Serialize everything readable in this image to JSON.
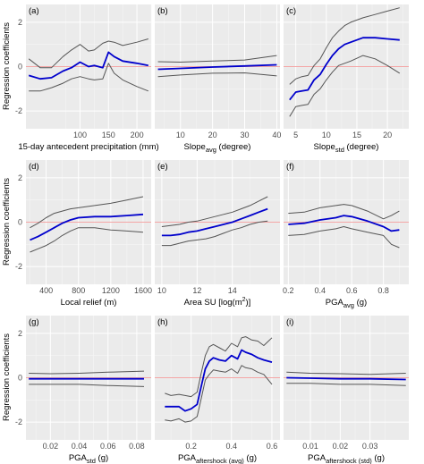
{
  "figure": {
    "ylabel": "Regression coefficients"
  },
  "chart_data": [
    {
      "type": "line",
      "panel_label": "(a)",
      "xlabel_parts": [
        {
          "t": "15-day antecedent precipitation (mm)"
        }
      ],
      "xlim": [
        5,
        225
      ],
      "ylim": [
        -2.8,
        2.8
      ],
      "xticks": [
        "100",
        "150",
        "200"
      ],
      "yticks": [
        "-2",
        "0",
        "2"
      ],
      "x": [
        10,
        30,
        50,
        70,
        85,
        100,
        115,
        125,
        140,
        150,
        160,
        175,
        200,
        220
      ],
      "series": [
        {
          "values": [
            0.35,
            -0.05,
            -0.05,
            0.45,
            0.75,
            1.0,
            0.7,
            0.75,
            1.05,
            1.15,
            1.1,
            0.95,
            1.1,
            1.25
          ]
        },
        {
          "values": [
            -0.4,
            -0.55,
            -0.5,
            -0.2,
            -0.05,
            0.2,
            0.0,
            0.05,
            -0.05,
            0.65,
            0.45,
            0.25,
            0.15,
            0.05
          ]
        },
        {
          "values": [
            -1.1,
            -1.1,
            -0.95,
            -0.75,
            -0.55,
            -0.45,
            -0.55,
            -0.6,
            -0.55,
            0.15,
            -0.3,
            -0.6,
            -0.9,
            -1.1
          ]
        }
      ]
    },
    {
      "type": "line",
      "panel_label": "(b)",
      "xlabel_parts": [
        {
          "t": "Slope"
        },
        {
          "t": "avg",
          "sub": true
        },
        {
          "t": " (degree)"
        }
      ],
      "xlim": [
        2,
        41
      ],
      "ylim": [
        -2.8,
        2.8
      ],
      "xticks": [
        "10",
        "20",
        "30",
        "40"
      ],
      "yticks": [
        "-2",
        "0",
        "2"
      ],
      "x": [
        3,
        10,
        20,
        30,
        40
      ],
      "series": [
        {
          "values": [
            0.22,
            0.2,
            0.25,
            0.3,
            0.5
          ]
        },
        {
          "values": [
            -0.12,
            -0.08,
            -0.02,
            0.03,
            0.08
          ]
        },
        {
          "values": [
            -0.45,
            -0.38,
            -0.3,
            -0.28,
            -0.42
          ]
        }
      ]
    },
    {
      "type": "line",
      "panel_label": "(c)",
      "xlabel_parts": [
        {
          "t": "Slope"
        },
        {
          "t": "std",
          "sub": true
        },
        {
          "t": " (degree)"
        }
      ],
      "xlim": [
        3,
        23.5
      ],
      "ylim": [
        -2.8,
        2.8
      ],
      "xticks": [
        "5",
        "10",
        "15",
        "20"
      ],
      "yticks": [
        "-2",
        "0",
        "2"
      ],
      "x": [
        4,
        5,
        6,
        7,
        8,
        9,
        10,
        11,
        12,
        13,
        14,
        16,
        18,
        20,
        22
      ],
      "series": [
        {
          "values": [
            -0.8,
            -0.55,
            -0.45,
            -0.4,
            0.05,
            0.35,
            0.85,
            1.3,
            1.6,
            1.85,
            2.0,
            2.2,
            2.35,
            2.5,
            2.65
          ]
        },
        {
          "values": [
            -1.5,
            -1.15,
            -1.1,
            -1.05,
            -0.6,
            -0.35,
            0.1,
            0.5,
            0.8,
            1.0,
            1.1,
            1.3,
            1.3,
            1.25,
            1.2
          ]
        },
        {
          "values": [
            -2.25,
            -1.8,
            -1.75,
            -1.7,
            -1.25,
            -1.0,
            -0.6,
            -0.25,
            0.05,
            0.15,
            0.25,
            0.5,
            0.35,
            0.05,
            -0.3
          ]
        }
      ]
    },
    {
      "type": "line",
      "panel_label": "(d)",
      "xlabel_parts": [
        {
          "t": "Local relief (m)"
        }
      ],
      "xlim": [
        150,
        1700
      ],
      "ylim": [
        -2.8,
        2.8
      ],
      "xticks": [
        "400",
        "800",
        "1200",
        "1600"
      ],
      "yticks": [
        "-2",
        "0",
        "2"
      ],
      "x": [
        200,
        300,
        400,
        500,
        600,
        700,
        800,
        1000,
        1200,
        1400,
        1600
      ],
      "series": [
        {
          "values": [
            -0.25,
            -0.05,
            0.2,
            0.4,
            0.5,
            0.6,
            0.65,
            0.75,
            0.85,
            1.0,
            1.15
          ]
        },
        {
          "values": [
            -0.8,
            -0.65,
            -0.45,
            -0.25,
            -0.05,
            0.1,
            0.2,
            0.25,
            0.25,
            0.3,
            0.35
          ]
        },
        {
          "values": [
            -1.35,
            -1.2,
            -1.05,
            -0.85,
            -0.6,
            -0.4,
            -0.25,
            -0.25,
            -0.35,
            -0.4,
            -0.45
          ]
        }
      ]
    },
    {
      "type": "line",
      "panel_label": "(e)",
      "xlabel_parts": [
        {
          "t": "Area SU [log(m"
        },
        {
          "t": "2",
          "sup": true
        },
        {
          "t": ")]"
        }
      ],
      "xlim": [
        9.6,
        16.7
      ],
      "ylim": [
        -2.8,
        2.8
      ],
      "xticks": [
        "10",
        "12",
        "14"
      ],
      "yticks": [
        "-2",
        "0",
        "2"
      ],
      "x": [
        10,
        10.5,
        11,
        11.5,
        12,
        12.5,
        13,
        13.5,
        14,
        14.5,
        15,
        15.5,
        16
      ],
      "series": [
        {
          "values": [
            -0.2,
            -0.15,
            -0.1,
            0.0,
            0.05,
            0.15,
            0.25,
            0.35,
            0.45,
            0.6,
            0.75,
            0.95,
            1.15
          ]
        },
        {
          "values": [
            -0.6,
            -0.6,
            -0.55,
            -0.45,
            -0.4,
            -0.3,
            -0.2,
            -0.1,
            0.0,
            0.15,
            0.3,
            0.45,
            0.6
          ]
        },
        {
          "values": [
            -1.05,
            -1.05,
            -0.95,
            -0.85,
            -0.8,
            -0.75,
            -0.65,
            -0.5,
            -0.35,
            -0.25,
            -0.1,
            0.0,
            0.05
          ]
        }
      ]
    },
    {
      "type": "line",
      "panel_label": "(f)",
      "xlabel_parts": [
        {
          "t": "PGA"
        },
        {
          "t": "avg",
          "sub": true
        },
        {
          "t": " (g)"
        }
      ],
      "xlim": [
        0.17,
        0.96
      ],
      "ylim": [
        -2.8,
        2.8
      ],
      "xticks": [
        "0.2",
        "0.4",
        "0.6",
        "0.8"
      ],
      "yticks": [
        "-2",
        "0",
        "2"
      ],
      "x": [
        0.2,
        0.3,
        0.4,
        0.5,
        0.55,
        0.6,
        0.7,
        0.8,
        0.85,
        0.9
      ],
      "series": [
        {
          "values": [
            0.4,
            0.45,
            0.65,
            0.75,
            0.8,
            0.75,
            0.5,
            0.15,
            0.3,
            0.5
          ]
        },
        {
          "values": [
            -0.1,
            -0.05,
            0.1,
            0.2,
            0.3,
            0.25,
            0.05,
            -0.2,
            -0.4,
            -0.35
          ]
        },
        {
          "values": [
            -0.6,
            -0.55,
            -0.4,
            -0.3,
            -0.2,
            -0.3,
            -0.45,
            -0.6,
            -1.0,
            -1.15
          ]
        }
      ]
    },
    {
      "type": "line",
      "panel_label": "(g)",
      "xlabel_parts": [
        {
          "t": "PGA"
        },
        {
          "t": "std",
          "sub": true
        },
        {
          "t": " (g)"
        }
      ],
      "xlim": [
        0.003,
        0.09
      ],
      "ylim": [
        -2.8,
        2.8
      ],
      "xticks": [
        "0.02",
        "0.04",
        "0.06",
        "0.08"
      ],
      "yticks": [
        "-2",
        "0",
        "2"
      ],
      "x": [
        0.005,
        0.02,
        0.04,
        0.06,
        0.085
      ],
      "series": [
        {
          "values": [
            0.2,
            0.18,
            0.2,
            0.25,
            0.3
          ]
        },
        {
          "values": [
            -0.05,
            -0.05,
            -0.05,
            -0.05,
            -0.05
          ]
        },
        {
          "values": [
            -0.3,
            -0.3,
            -0.3,
            -0.35,
            -0.4
          ]
        }
      ]
    },
    {
      "type": "line",
      "panel_label": "(h)",
      "xlabel_parts": [
        {
          "t": "PGA"
        },
        {
          "t": "aftershock (avg)",
          "sub": true
        },
        {
          "t": " (g)"
        }
      ],
      "xlim": [
        0.02,
        0.64
      ],
      "ylim": [
        -2.8,
        2.8
      ],
      "xticks": [
        "0.2",
        "0.4",
        "0.6"
      ],
      "yticks": [
        "-2",
        "0",
        "2"
      ],
      "x": [
        0.07,
        0.1,
        0.14,
        0.17,
        0.2,
        0.23,
        0.25,
        0.27,
        0.29,
        0.31,
        0.34,
        0.37,
        0.4,
        0.43,
        0.45,
        0.47,
        0.5,
        0.53,
        0.56,
        0.6
      ],
      "series": [
        {
          "values": [
            -0.7,
            -0.8,
            -0.75,
            -0.8,
            -0.85,
            -0.65,
            0.2,
            1.0,
            1.4,
            1.5,
            1.35,
            1.2,
            1.55,
            1.4,
            1.8,
            1.85,
            1.7,
            1.65,
            1.45,
            1.8
          ]
        },
        {
          "values": [
            -1.3,
            -1.3,
            -1.3,
            -1.5,
            -1.4,
            -1.2,
            -0.4,
            0.4,
            0.75,
            0.9,
            0.8,
            0.75,
            1.0,
            0.85,
            1.25,
            1.15,
            1.05,
            0.9,
            0.8,
            0.7
          ]
        },
        {
          "values": [
            -1.9,
            -1.95,
            -1.85,
            -2.0,
            -1.95,
            -1.75,
            -0.95,
            -0.1,
            0.15,
            0.35,
            0.3,
            0.25,
            0.4,
            0.2,
            0.55,
            0.45,
            0.4,
            0.25,
            0.15,
            -0.3
          ]
        }
      ]
    },
    {
      "type": "line",
      "panel_label": "(i)",
      "xlabel_parts": [
        {
          "t": "PGA"
        },
        {
          "t": "aftershock (std)",
          "sub": true
        },
        {
          "t": " (g)"
        }
      ],
      "xlim": [
        0.001,
        0.043
      ],
      "ylim": [
        -2.8,
        2.8
      ],
      "xticks": [
        "0.01",
        "0.02",
        "0.03"
      ],
      "yticks": [
        "-2",
        "0",
        "2"
      ],
      "x": [
        0.002,
        0.01,
        0.02,
        0.03,
        0.042
      ],
      "series": [
        {
          "values": [
            0.25,
            0.2,
            0.18,
            0.15,
            0.2
          ]
        },
        {
          "values": [
            0.0,
            -0.02,
            -0.05,
            -0.05,
            -0.08
          ]
        },
        {
          "values": [
            -0.25,
            -0.25,
            -0.3,
            -0.3,
            -0.35
          ]
        }
      ]
    }
  ],
  "style": {
    "panel_bg": "#ebebeb",
    "grid_major": "#ffffff",
    "grid_minor": "#f5f5f5",
    "coef_line": "#0000cc",
    "ci_line": "#555555",
    "zero_line": "#f4a6a6"
  }
}
